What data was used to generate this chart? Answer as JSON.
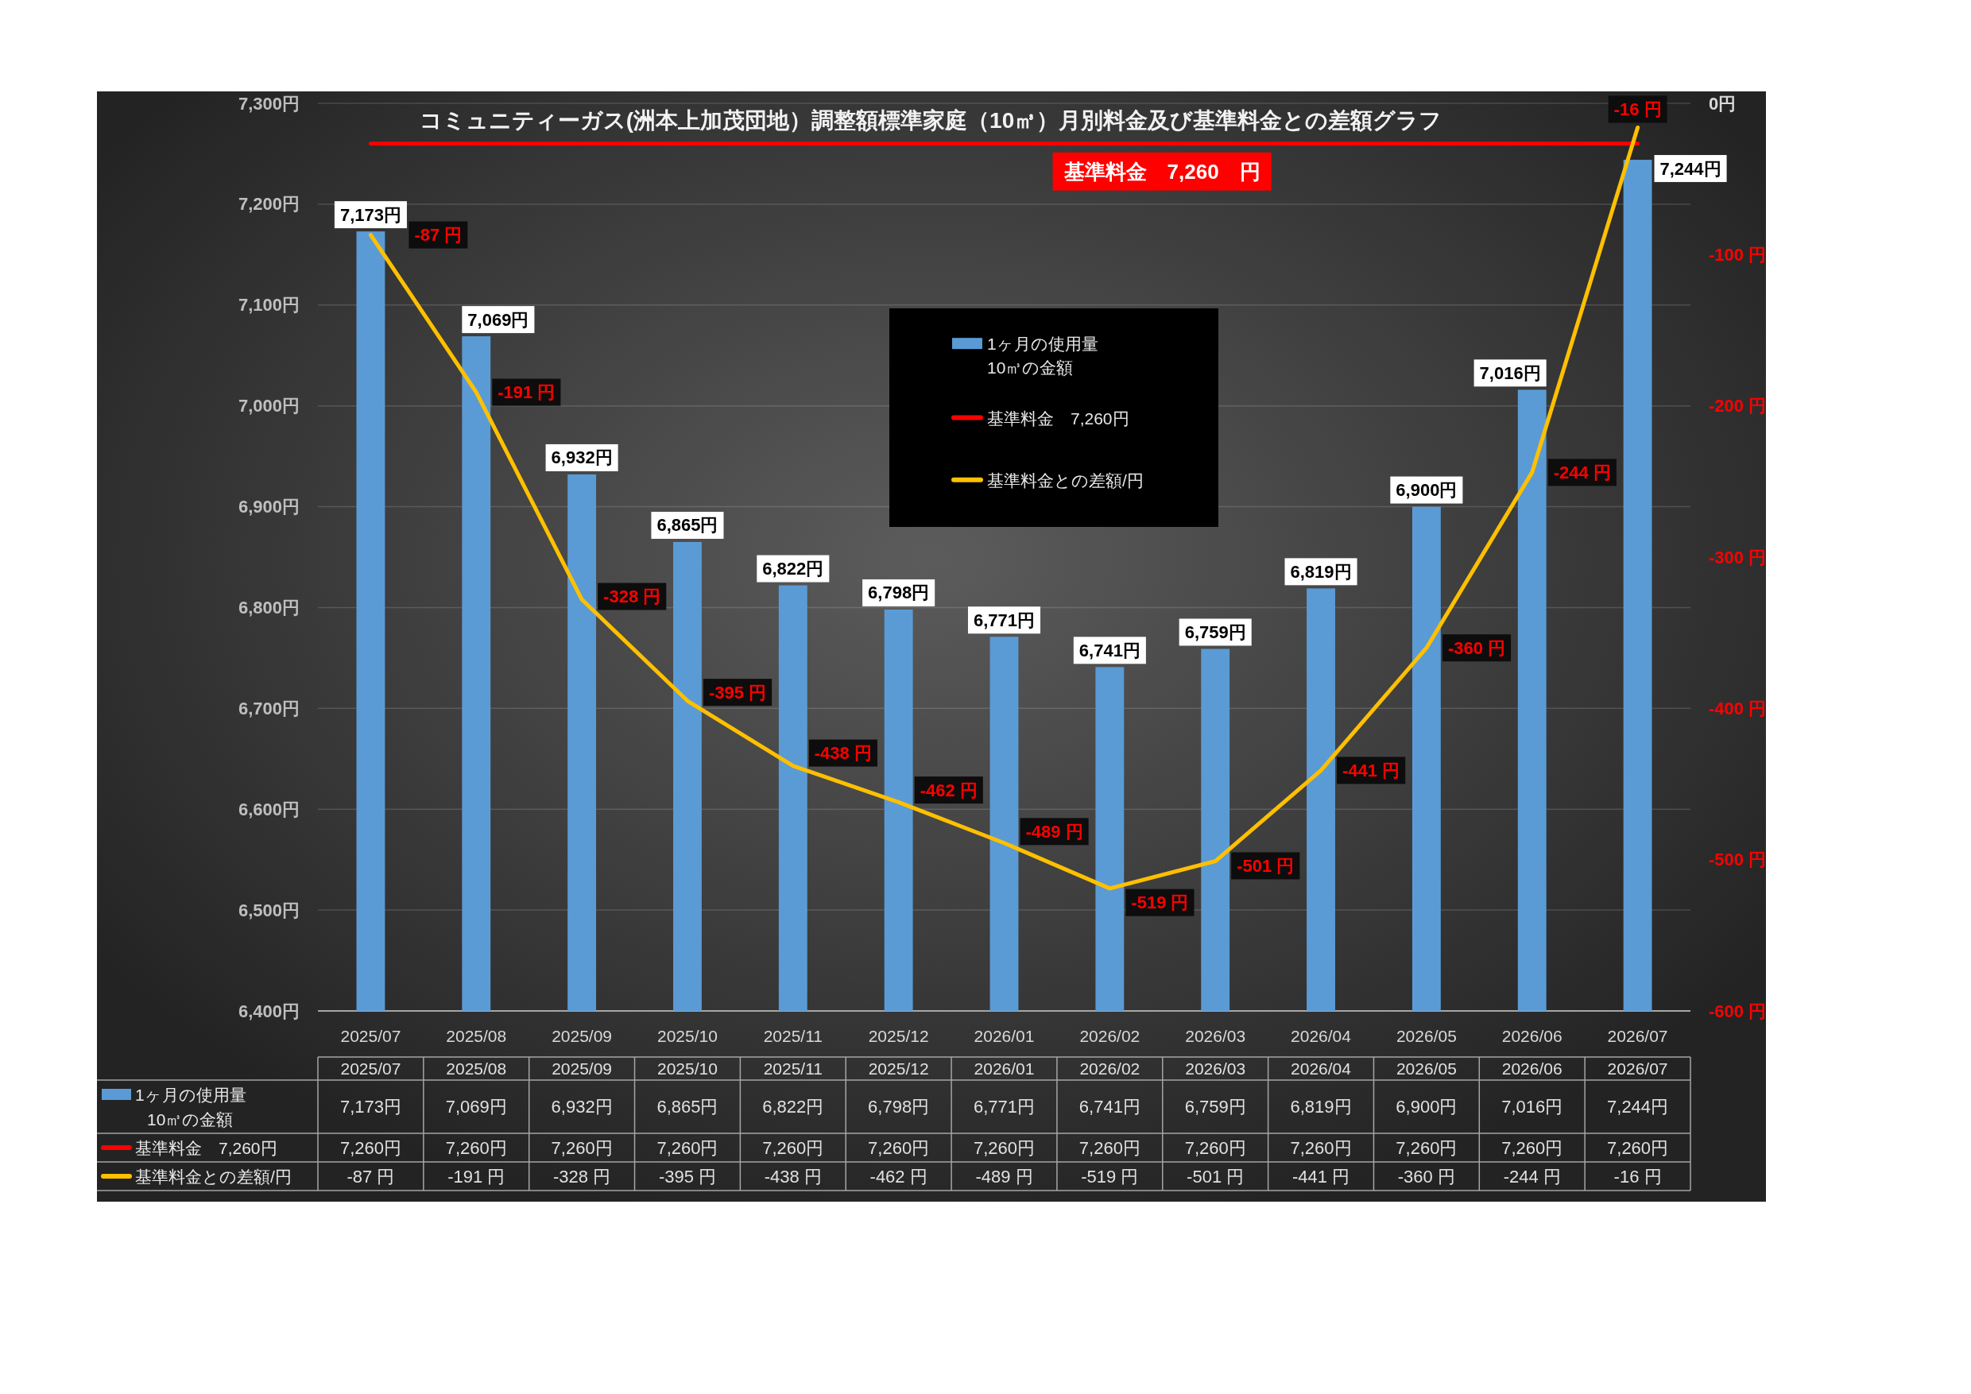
{
  "chart_data": {
    "type": "bar",
    "title": "コミュニティーガス(洲本上加茂団地）調整額標準家庭（10㎥）月別料金及び基準料金との差額グラフ",
    "categories": [
      "2025/07",
      "2025/08",
      "2025/09",
      "2025/10",
      "2025/11",
      "2025/12",
      "2026/01",
      "2026/02",
      "2026/03",
      "2026/04",
      "2026/05",
      "2026/06",
      "2026/07"
    ],
    "series": [
      {
        "name": "1ヶ月の使用量\n10㎥の金額",
        "color": "#5b9bd5",
        "values": [
          7173,
          7069,
          6932,
          6865,
          6822,
          6798,
          6771,
          6741,
          6759,
          6819,
          6900,
          7016,
          7244
        ],
        "value_labels": [
          "7,173円",
          "7,069円",
          "6,932円",
          "6,865円",
          "6,822円",
          "6,798円",
          "6,771円",
          "6,741円",
          "6,759円",
          "6,819円",
          "6,900円",
          "7,016円",
          "7,244円"
        ]
      },
      {
        "name": "基準料金　7,260円",
        "type": "line",
        "color": "#ff0000",
        "values": [
          7260,
          7260,
          7260,
          7260,
          7260,
          7260,
          7260,
          7260,
          7260,
          7260,
          7260,
          7260,
          7260
        ],
        "value_labels": [
          "7,260円",
          "7,260円",
          "7,260円",
          "7,260円",
          "7,260円",
          "7,260円",
          "7,260円",
          "7,260円",
          "7,260円",
          "7,260円",
          "7,260円",
          "7,260円",
          "7,260円"
        ]
      },
      {
        "name": "基準料金との差額/円",
        "type": "line",
        "color": "#ffc000",
        "axis": "y2",
        "values": [
          -87,
          -191,
          -328,
          -395,
          -438,
          -462,
          -489,
          -519,
          -501,
          -441,
          -360,
          -244,
          -16
        ],
        "value_labels": [
          "-87 円",
          "-191 円",
          "-328 円",
          "-395 円",
          "-438 円",
          "-462 円",
          "-489 円",
          "-519 円",
          "-501 円",
          "-441 円",
          "-360 円",
          "-244 円",
          "-16 円"
        ]
      }
    ],
    "ylim": [
      6400,
      7300
    ],
    "yticks": [
      {
        "value": 6400,
        "label": "6,400円"
      },
      {
        "value": 6500,
        "label": "6,500円"
      },
      {
        "value": 6600,
        "label": "6,600円"
      },
      {
        "value": 6700,
        "label": "6,700円"
      },
      {
        "value": 6800,
        "label": "6,800円"
      },
      {
        "value": 6900,
        "label": "6,900円"
      },
      {
        "value": 7000,
        "label": "7,000円"
      },
      {
        "value": 7100,
        "label": "7,100円"
      },
      {
        "value": 7200,
        "label": "7,200円"
      },
      {
        "value": 7300,
        "label": "7,300円"
      }
    ],
    "y2lim": [
      -600,
      0
    ],
    "y2ticks": [
      {
        "value": -600,
        "label": "-600 円"
      },
      {
        "value": -500,
        "label": "-500 円"
      },
      {
        "value": -400,
        "label": "-400 円"
      },
      {
        "value": -300,
        "label": "-300 円"
      },
      {
        "value": -200,
        "label": "-200 円"
      },
      {
        "value": -100,
        "label": "-100 円"
      },
      {
        "value": 0,
        "label": "0円"
      }
    ],
    "grid": "y",
    "legend": "top",
    "annotations": [
      {
        "text": "基準料金　7,260　円",
        "y": 7260
      }
    ]
  }
}
